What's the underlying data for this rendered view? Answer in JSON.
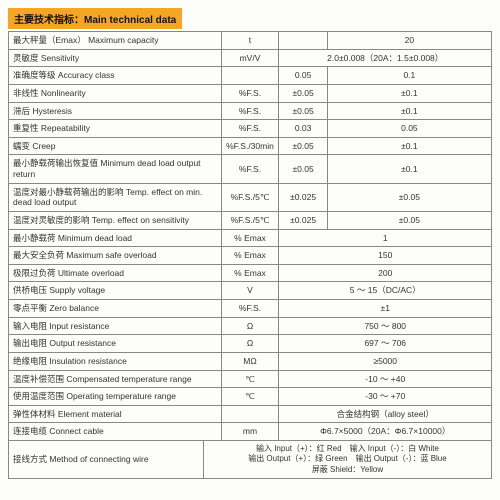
{
  "title": "主要技术指标：Main technical data",
  "colgroup": {
    "label_w": "44%",
    "unit_w": "12%",
    "v1_w": "10%",
    "v3_w": "34%"
  },
  "rows": [
    {
      "label": "最大秤量（Emax） Maximum capacity",
      "unit": "t",
      "v1": "",
      "v3": "20"
    },
    {
      "label": "灵敏度 Sensitivity",
      "unit": "mV/V",
      "span": "2.0±0.008（20A：1.5±0.008）"
    },
    {
      "label": "准确度等级 Accuracy class",
      "unit": "",
      "vA": "0.05",
      "vB": "0.1"
    },
    {
      "label": "非线性 Nonlinearity",
      "unit": "%F.S.",
      "vA": "±0.05",
      "vB": "±0.1"
    },
    {
      "label": "滞后 Hysteresis",
      "unit": "%F.S.",
      "vA": "±0.05",
      "vB": "±0.1"
    },
    {
      "label": "重复性 Repeatability",
      "unit": "%F.S.",
      "vA": "0.03",
      "vB": "0.05"
    },
    {
      "label": "蠕变 Creep",
      "unit": "%F.S./30min",
      "vA": "±0.05",
      "vB": "±0.1"
    },
    {
      "label": "最小静载荷输出恢复值 Minimum dead load output return",
      "unit": "%F.S.",
      "vA": "±0.05",
      "vB": "±0.1"
    },
    {
      "label": "温度对最小静载荷输出的影响 Temp. effect on min. dead load output",
      "unit": "%F.S./5℃",
      "vA": "±0.025",
      "vB": "±0.05"
    },
    {
      "label": "温度对灵敏度的影响 Temp. effect on sensitivity",
      "unit": "%F.S./5℃",
      "vA": "±0.025",
      "vB": "±0.05"
    },
    {
      "label": "最小静载荷 Minimum dead load",
      "unit": "% Emax",
      "span": "1"
    },
    {
      "label": "最大安全负荷 Maximum safe overload",
      "unit": "% Emax",
      "span": "150"
    },
    {
      "label": "极限过负荷 Ultimate overload",
      "unit": "% Emax",
      "span": "200"
    },
    {
      "label": "供桥电压 Supply voltage",
      "unit": "V",
      "span": "5 ～ 15（DC/AC）"
    },
    {
      "label": "零点平衡 Zero balance",
      "unit": "%F.S.",
      "span": "±1"
    },
    {
      "label": "输入电阻 Input resistance",
      "unit": "Ω",
      "span": "750 ～ 800"
    },
    {
      "label": "输出电阻 Output resistance",
      "unit": "Ω",
      "span": "697 ～ 706"
    },
    {
      "label": "绝缘电阻 Insulation resistance",
      "unit": "MΩ",
      "span": "≥5000"
    },
    {
      "label": "温度补偿范围 Compensated temperature range",
      "unit": "℃",
      "span": "-10 ～ +40"
    },
    {
      "label": "使用温度范围 Operating temperature range",
      "unit": "℃",
      "span": "-30 ～ +70"
    },
    {
      "label": "弹性体材料 Element material",
      "unit": "",
      "span": "合金结构钢（alloy steel）"
    },
    {
      "label": "连接电缆 Connect cable",
      "unit": "mm",
      "span": "Φ6.7×5000（20A：Φ6.7×10000）"
    }
  ],
  "footer": {
    "label": "接线方式 Method of connecting wire",
    "text": "输入 Input（+）：红 Red　输入 Input（-）：白 White\n输出 Output（+）：绿 Green　输出 Output（-）：蓝 Blue\n屏蔽 Shield：Yellow"
  },
  "colors": {
    "title_bg": "#f5a623",
    "border": "#888888",
    "page_bg": "#fdfdfb"
  }
}
